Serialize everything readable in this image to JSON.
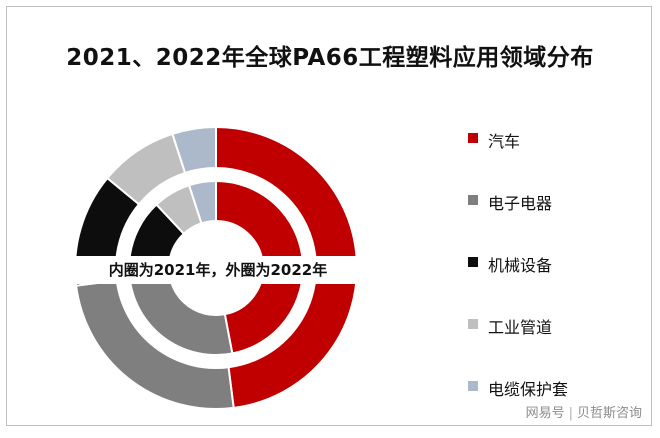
{
  "title": "2021、2022年全球PA66工程塑料应用领域分布",
  "center_note": "内圈为2021年，外圈为2022年",
  "watermark": {
    "brand": "网易号",
    "author": "贝哲斯咨询"
  },
  "chart_data": {
    "type": "pie",
    "variant": "nested-donut",
    "categories": [
      "汽车",
      "电子电器",
      "机械设备",
      "工业管道",
      "电缆保护套"
    ],
    "colors": [
      "#c00000",
      "#7f7f7f",
      "#0d0d0d",
      "#bfbfbf",
      "#acb9ca"
    ],
    "series": [
      {
        "ring": "inner",
        "year": "2021",
        "values": [
          47,
          30,
          11,
          7,
          5
        ]
      },
      {
        "ring": "outer",
        "year": "2022",
        "values": [
          48,
          25,
          13,
          9,
          5
        ]
      }
    ],
    "legend_position": "right"
  }
}
